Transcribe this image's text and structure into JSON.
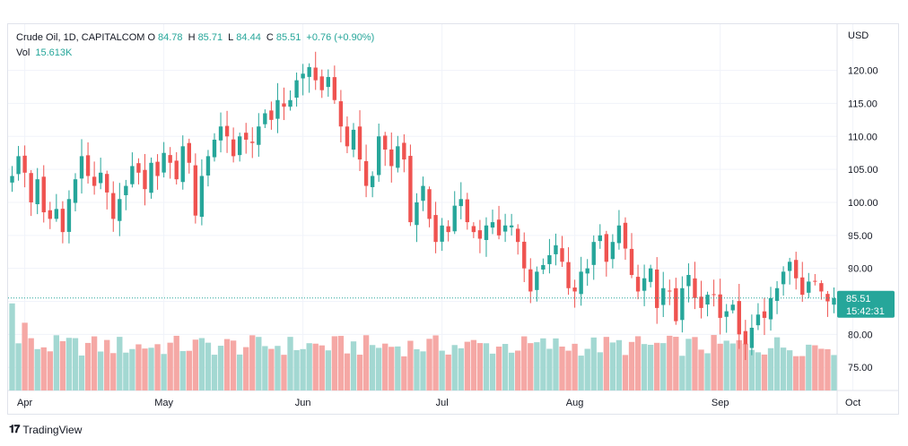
{
  "legend": {
    "symbol": "Crude Oil, 1D, CAPITALCOM",
    "o_label": "O",
    "o_value": "84.78",
    "h_label": "H",
    "h_value": "85.71",
    "l_label": "L",
    "l_value": "84.44",
    "c_label": "C",
    "c_value": "85.51",
    "change": "+0.76 (+0.90%)",
    "vol_label": "Vol",
    "vol_value": "15.613K"
  },
  "price_axis": {
    "currency": "USD",
    "last_price": "85.51",
    "countdown": "15:42:31"
  },
  "brand": {
    "name": "TradingView"
  },
  "colors": {
    "up": "#26a69a",
    "down": "#ef5350",
    "up_vol": "#a3d8d2",
    "down_vol": "#f5a8a5",
    "grid": "#f0f3fa",
    "price_tag": "#26a69a"
  },
  "chart_data": {
    "type": "candlestick",
    "ylim": [
      71.5,
      127
    ],
    "yticks": [
      75,
      80,
      85,
      90,
      95,
      100,
      105,
      110,
      115,
      120
    ],
    "ytick_labels": [
      "75.00",
      "80.00",
      "85.00",
      "90.00",
      "95.00",
      "100.00",
      "105.00",
      "110.00",
      "115.00",
      "120.00"
    ],
    "month_labels": [
      {
        "label": "Apr",
        "index": 2
      },
      {
        "label": "May",
        "index": 24
      },
      {
        "label": "Jun",
        "index": 46
      },
      {
        "label": "Jul",
        "index": 68
      },
      {
        "label": "Aug",
        "index": 89
      },
      {
        "label": "Sep",
        "index": 112
      },
      {
        "label": "Oct",
        "index": 133
      }
    ],
    "closes": [
      104.0,
      107.0,
      104.5,
      100.0,
      103.5,
      98.5,
      97.5,
      99.0,
      95.5,
      100.5,
      103.5,
      107.0,
      104.0,
      102.5,
      104.5,
      101.5,
      97.5,
      100.5,
      102.5,
      105.5,
      104.5,
      102.0,
      106.0,
      104.0,
      107.5,
      106.0,
      103.5,
      108.5,
      106.0,
      98.0,
      104.0,
      107.0,
      109.5,
      111.5,
      110.0,
      107.0,
      110.0,
      109.5,
      109.0,
      111.5,
      113.5,
      112.5,
      115.5,
      114.5,
      115.5,
      118.5,
      119.5,
      120.5,
      118.5,
      117.0,
      119.0,
      115.5,
      111.5,
      108.5,
      111.0,
      106.5,
      102.5,
      104.0,
      110.0,
      108.0,
      105.5,
      108.5,
      106.5,
      97.0,
      100.0,
      102.5,
      97.5,
      94.0,
      96.5,
      95.5,
      99.5,
      100.5,
      97.0,
      95.5,
      94.5,
      96.5,
      97.0,
      95.0,
      96.5,
      96.5,
      94.0,
      90.0,
      86.5,
      89.5,
      90.5,
      92.0,
      93.5,
      91.0,
      87.0,
      86.5,
      89.5,
      90.0,
      94.0,
      95.0,
      91.0,
      94.0,
      96.5,
      93.0,
      89.0,
      86.5,
      88.5,
      90.0,
      84.0,
      87.0,
      86.5,
      82.0,
      87.0,
      89.0,
      85.5,
      84.0,
      86.0,
      86.0,
      82.5,
      83.5,
      84.5,
      80.0,
      78.5,
      81.0,
      83.0,
      82.5,
      85.5,
      87.0,
      89.5,
      91.0,
      88.5,
      86.0,
      88.0,
      88.0,
      86.5,
      85.0,
      85.5
    ]
  }
}
